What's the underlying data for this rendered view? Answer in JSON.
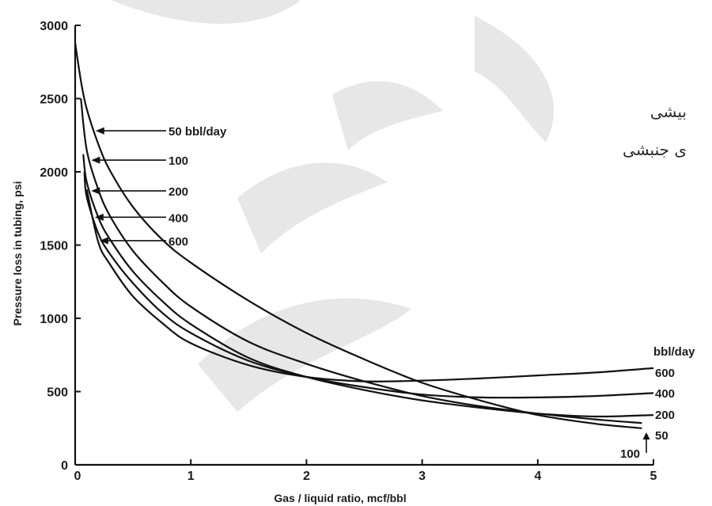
{
  "chart_data": {
    "type": "line",
    "title": "",
    "xlabel": "Gas / liquid ratio, mcf/bbl",
    "ylabel": "Pressure loss in tubing, psi",
    "xlim": [
      0,
      5
    ],
    "ylim": [
      0,
      3000
    ],
    "x_ticks": [
      0,
      1,
      2,
      3,
      4,
      5
    ],
    "y_ticks": [
      0,
      500,
      1000,
      1500,
      2000,
      2500,
      3000
    ],
    "x_tick_labels": [
      "0",
      "1",
      "2",
      "3",
      "4",
      "5"
    ],
    "y_tick_labels": [
      "0",
      "500",
      "1000",
      "1500",
      "2000",
      "2500",
      "3000"
    ],
    "grid": false,
    "series": [
      {
        "name": "50",
        "x": [
          0.0,
          0.05,
          0.1,
          0.2,
          0.3,
          0.5,
          0.75,
          1.0,
          1.5,
          2.0,
          2.5,
          3.0,
          3.5,
          4.0,
          4.5,
          4.9
        ],
        "y": [
          2880,
          2620,
          2430,
          2190,
          2010,
          1760,
          1540,
          1380,
          1120,
          900,
          720,
          560,
          440,
          340,
          280,
          250
        ]
      },
      {
        "name": "100",
        "x": [
          0.05,
          0.1,
          0.2,
          0.3,
          0.5,
          0.75,
          1.0,
          1.5,
          2.0,
          2.5,
          3.0,
          3.5,
          4.0,
          4.5,
          4.9
        ],
        "y": [
          2500,
          2150,
          1880,
          1700,
          1460,
          1250,
          1080,
          840,
          690,
          570,
          470,
          400,
          350,
          310,
          285
        ]
      },
      {
        "name": "200",
        "x": [
          0.07,
          0.1,
          0.2,
          0.3,
          0.5,
          0.75,
          1.0,
          1.5,
          2.0,
          2.5,
          3.0,
          3.5,
          4.0,
          4.5,
          5.0
        ],
        "y": [
          2120,
          1930,
          1690,
          1540,
          1320,
          1120,
          960,
          730,
          600,
          510,
          440,
          390,
          350,
          330,
          340
        ]
      },
      {
        "name": "400",
        "x": [
          0.08,
          0.1,
          0.2,
          0.3,
          0.5,
          0.75,
          1.0,
          1.5,
          2.0,
          2.5,
          3.0,
          3.5,
          4.0,
          4.5,
          5.0
        ],
        "y": [
          2000,
          1830,
          1580,
          1440,
          1240,
          1040,
          900,
          710,
          600,
          530,
          480,
          460,
          460,
          470,
          490
        ]
      },
      {
        "name": "600",
        "x": [
          0.1,
          0.2,
          0.3,
          0.5,
          0.75,
          1.0,
          1.5,
          2.0,
          2.5,
          3.0,
          3.5,
          4.0,
          4.5,
          5.0
        ],
        "y": [
          1880,
          1520,
          1370,
          1150,
          970,
          830,
          680,
          600,
          570,
          575,
          590,
          610,
          630,
          660
        ]
      }
    ],
    "annotations": [
      {
        "text": "50 bbl/day",
        "series": "50",
        "at_y": 2280
      },
      {
        "text": "100",
        "series": "100",
        "at_y": 2080
      },
      {
        "text": "200",
        "series": "200",
        "at_y": 1870
      },
      {
        "text": "400",
        "series": "400",
        "at_y": 1690
      },
      {
        "text": "600",
        "series": "600",
        "at_y": 1530
      }
    ],
    "right_labels": {
      "header": "bbl/day",
      "items": [
        "600",
        "400",
        "200",
        "50",
        "100"
      ]
    }
  },
  "overlay_text": {
    "persian_line_1": "بیشی",
    "persian_line_2": "ی جنبشی"
  }
}
